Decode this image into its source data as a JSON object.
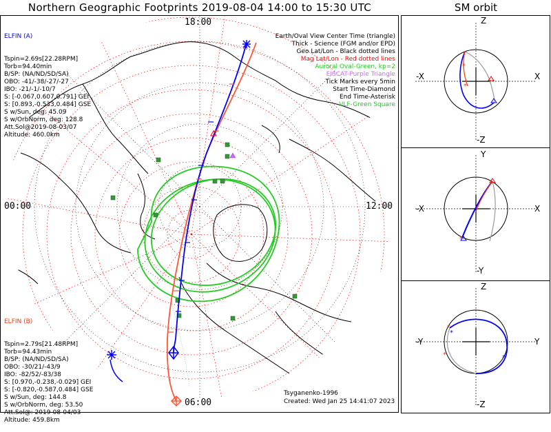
{
  "header": {
    "title": "Northern Geographic Footprints 2019-08-04 14:00 to 15:30 UTC",
    "sm_title": "SM orbit"
  },
  "map": {
    "clock_top": "18:00",
    "clock_left": "00:00",
    "clock_right": "12:00",
    "clock_bottom": "06:00"
  },
  "legend": [
    {
      "text": "Earth/Oval View Center Time (triangle)",
      "color": "#000000"
    },
    {
      "text": "Thick - Science (FGM and/or EPD)",
      "color": "#000000"
    },
    {
      "text": "Geo Lat/Lon - Black dotted lines",
      "color": "#000000"
    },
    {
      "text": "Mag Lat/Lon - Red dotted lines",
      "color": "#ff0000"
    },
    {
      "text": "Auroral Oval-Green, kp=2",
      "color": "#22cc22"
    },
    {
      "text": "EISCAT-Purple Triangle",
      "color": "#cc66ff"
    },
    {
      "text": "Tick Marks every 5min",
      "color": "#000000"
    },
    {
      "text": "Start Time-Diamond",
      "color": "#000000"
    },
    {
      "text": "End Time-Asterisk",
      "color": "#000000"
    },
    {
      "text": "VLF-Green Square",
      "color": "#22cc22"
    }
  ],
  "elfin_a": {
    "name": "ELFIN (A)",
    "lines": [
      "Tspin=2.69s[22.28RPM]",
      "Torb=94.40min",
      "B/SP: (NA/ND/SD/SA)",
      "OBO: -41/-38/-27/-27",
      "IBO: -21/-1/-10/7",
      "S: [-0.067,0.607,0.791] GEI",
      "S: [0.893,-0.533,0.484] GSE",
      "S w/Sun, deg: 45.09",
      "S w/OrbNorm, deg: 128.8",
      "Att.Sol@2019-08-03/07",
      "Altitude: 460.0km"
    ]
  },
  "elfin_b": {
    "name": "ELFIN (B)",
    "lines": [
      "Tspin=2.79s[21.48RPM]",
      "Torb=94.43min",
      "B/SP: (NA/ND/SD/SA)",
      "OBO: -30/21/-43/9",
      "IBO: -82/52/-83/38",
      "S: [0.970,-0.238,-0.029] GEI",
      "S: [-0.820,-0.587,0.484] GSE",
      "S w/Sun, deg: 144.8",
      "S w/OrbNorm, deg: 53.50",
      "Att.Sol@: 2019-08-04/03",
      "Altitude: 459.8km"
    ]
  },
  "footer": {
    "model": "Tsyganenko-1996",
    "created": "Created: Wed Jan 25 14:41:07 2023"
  },
  "sm_panels": [
    {
      "top_label": "Z",
      "bottom_label": "-Z",
      "left_label": "-X",
      "right_label": "X"
    },
    {
      "top_label": "Y",
      "bottom_label": "-Y",
      "left_label": "-X",
      "right_label": "X"
    },
    {
      "top_label": "Z",
      "bottom_label": "-Z",
      "left_label": "-Y",
      "right_label": "Y"
    }
  ],
  "colors": {
    "elfin_a": "#0000ff",
    "elfin_b": "#ff5533",
    "oval": "#22cc22",
    "mag_grid": "#ff0000",
    "eiscat": "#cc66ff",
    "vlf": "#339933"
  }
}
